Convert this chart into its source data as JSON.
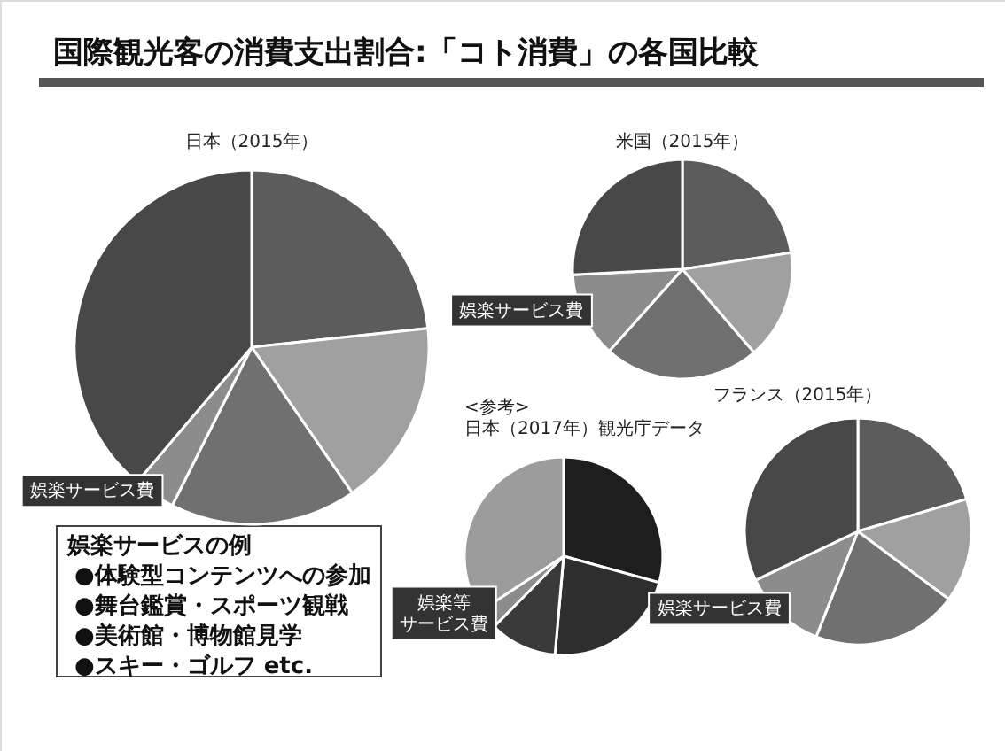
{
  "chart_data": [
    {
      "type": "other",
      "title": "国際観光客の消費支出割合:「コト消費」の各国比較",
      "annotations": [
        "娯楽サービスの例",
        "●体験型コンテンツへの参加",
        "●舞台鑑賞・スポーツ観戦",
        "●美術館・博物館見学",
        "●スキー・ゴルフ etc."
      ]
    },
    {
      "type": "pie",
      "title": "日本（2015年）",
      "categories": [
        null,
        null,
        null,
        "娯楽サービス費",
        null
      ],
      "values": [
        23.3,
        17.1,
        17.0,
        3.8,
        38.8
      ],
      "colors": [
        "#5c5c5c",
        "#a0a0a0",
        "#707070",
        "#8c8c8c",
        "#484848"
      ]
    },
    {
      "type": "pie",
      "title": "米国（2015年）",
      "categories": [
        null,
        null,
        null,
        "娯楽サービス費",
        null
      ],
      "values": [
        22.6,
        16.1,
        22.9,
        12.6,
        25.8
      ],
      "colors": [
        "#5c5c5c",
        "#a0a0a0",
        "#707070",
        "#8c8c8c",
        "#484848"
      ]
    },
    {
      "type": "pie",
      "title": "<参考>\n日本（2017年）観光庁データ",
      "categories": [
        null,
        null,
        null,
        "娯楽等サービス費",
        null
      ],
      "values": [
        29.3,
        22.1,
        11.0,
        3.3,
        34.3
      ],
      "colors": [
        "#1e1e1e",
        "#2e2e2e",
        "#3a3a3a",
        "#8c8c8c",
        "#9c9c9c"
      ]
    },
    {
      "type": "pie",
      "title": "フランス（2015年）",
      "categories": [
        null,
        null,
        null,
        "娯楽サービス費",
        null
      ],
      "values": [
        20.4,
        14.8,
        20.8,
        11.9,
        32.1
      ],
      "colors": [
        "#5c5c5c",
        "#a0a0a0",
        "#707070",
        "#8c8c8c",
        "#484848"
      ]
    }
  ]
}
